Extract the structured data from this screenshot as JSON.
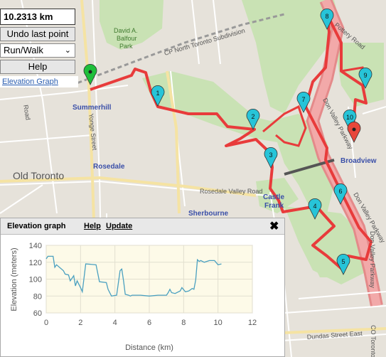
{
  "controls": {
    "distance": "10.2313 km",
    "undo_label": "Undo last point",
    "mode_value": "Run/Walk",
    "help_label": "Help",
    "elevation_link": "Elevation Graph"
  },
  "map_labels": {
    "summerhill": "Summerhill",
    "rosedale": "Rosedale",
    "old_toronto": "Old Toronto",
    "sherbourne": "Sherbourne",
    "castle": "Castle",
    "frank": "Frank",
    "broadview": "Broadview",
    "cp_north": "CP North Toronto Subdivision",
    "balfour1": "David A.",
    "balfour2": "Balfour",
    "balfour3": "Park",
    "yonge": "Yonge Street",
    "road": "Road",
    "pottery": "Pottery Road",
    "dvp1": "Don Valley Parkway",
    "dvp2": "Don Valley Parkway",
    "dvp3": "Don Valley Parkway",
    "rosedale_valley": "Rosedale Valley Road",
    "dundas": "Dundas Street East",
    "co_toronto": "CO Toronto"
  },
  "markers": [
    "1",
    "2",
    "3",
    "4",
    "5",
    "6",
    "7",
    "8",
    "9",
    "10"
  ],
  "panel": {
    "title": "Elevation graph",
    "help": "Help",
    "update": "Update",
    "close": "✖"
  },
  "colors": {
    "route": "#e83b3b",
    "marker": "#27c4d8",
    "start_marker": "#1fbf3a",
    "end_marker": "#e8473b",
    "elevation_line": "#4aa0c0",
    "plot_bg": "#fdfae8"
  },
  "chart_data": {
    "type": "line",
    "xlabel": "Distance (km)",
    "ylabel": "Elevation (meters)",
    "xlim": [
      0,
      12
    ],
    "ylim": [
      60,
      140
    ],
    "xticks": [
      0,
      2,
      4,
      6,
      8,
      10,
      12
    ],
    "yticks": [
      60,
      80,
      100,
      120,
      140
    ],
    "grid": true,
    "series": [
      {
        "x": [
          0,
          0.1,
          0.4,
          0.5,
          0.6,
          1.0,
          1.1,
          1.3,
          1.4,
          1.6,
          1.7,
          1.8,
          2.0,
          2.1,
          2.3,
          2.9,
          3.1,
          3.5,
          3.6,
          3.8,
          4.1,
          4.3,
          4.4,
          4.5,
          4.6,
          4.8,
          4.9,
          5.0,
          5.5,
          6.0,
          6.5,
          7.0,
          7.1,
          7.2,
          7.3,
          7.5,
          7.8,
          7.9,
          8.1,
          8.3,
          8.5,
          8.6,
          8.7,
          8.8,
          8.9,
          9.0,
          9.2,
          9.5,
          9.8,
          10.0,
          10.2
        ],
        "y": [
          124,
          127,
          127,
          114,
          117,
          110,
          106,
          105,
          98,
          104,
          92,
          98,
          90,
          85,
          118,
          117,
          97,
          96,
          88,
          80,
          81,
          110,
          112,
          98,
          82,
          81,
          80,
          81,
          81,
          80,
          81,
          81,
          84,
          88,
          84,
          83,
          86,
          90,
          85,
          86,
          89,
          88,
          99,
          123,
          121,
          122,
          120,
          122,
          122,
          117,
          118
        ]
      }
    ]
  }
}
